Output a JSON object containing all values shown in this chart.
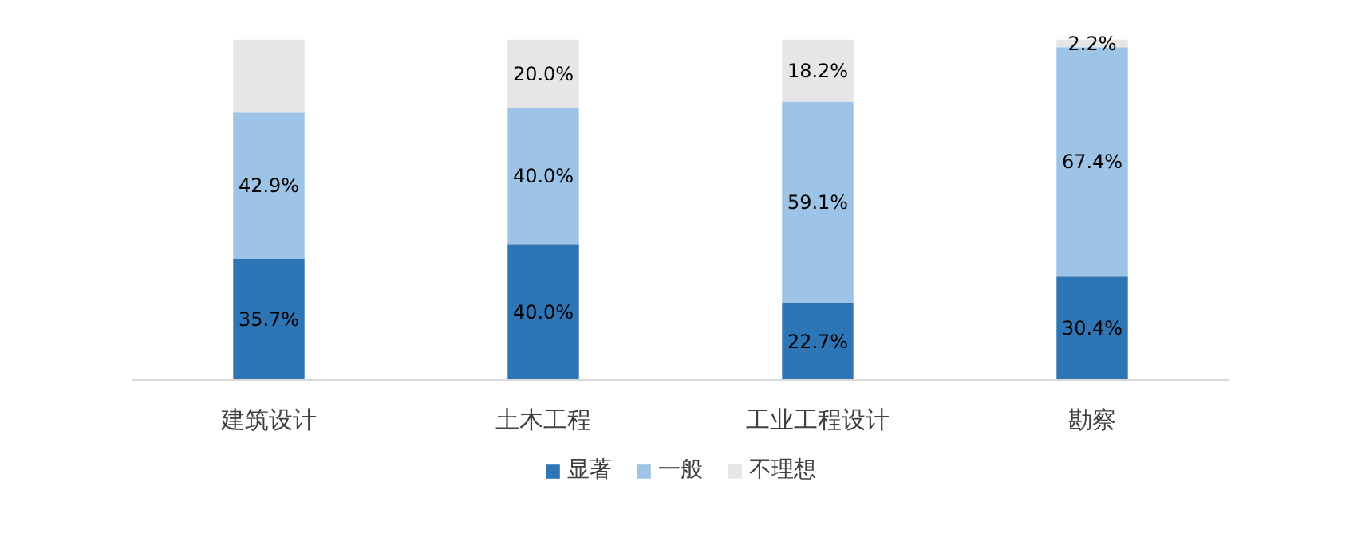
{
  "chart_data": {
    "type": "bar",
    "stacked": true,
    "categories": [
      "建筑设计",
      "土木工程",
      "工业工程设计",
      "勘察"
    ],
    "series": [
      {
        "name": "显著",
        "color": "#2e75b6",
        "values": [
          35.7,
          40.0,
          22.7,
          30.4
        ],
        "value_labels": [
          "35.7%",
          "40.0%",
          "22.7%",
          "30.4%"
        ]
      },
      {
        "name": "一般",
        "color": "#9dc3e6",
        "values": [
          42.9,
          40.0,
          59.1,
          67.4
        ],
        "value_labels": [
          "42.9%",
          "40.0%",
          "59.1%",
          "67.4%"
        ]
      },
      {
        "name": "不理想",
        "color": "#e7e6e6",
        "values": [
          21.4,
          20.0,
          18.2,
          2.2
        ],
        "value_labels": [
          null,
          "20.0%",
          "18.2%",
          "2.2%"
        ]
      }
    ],
    "legend": "bottom",
    "grid": false
  }
}
